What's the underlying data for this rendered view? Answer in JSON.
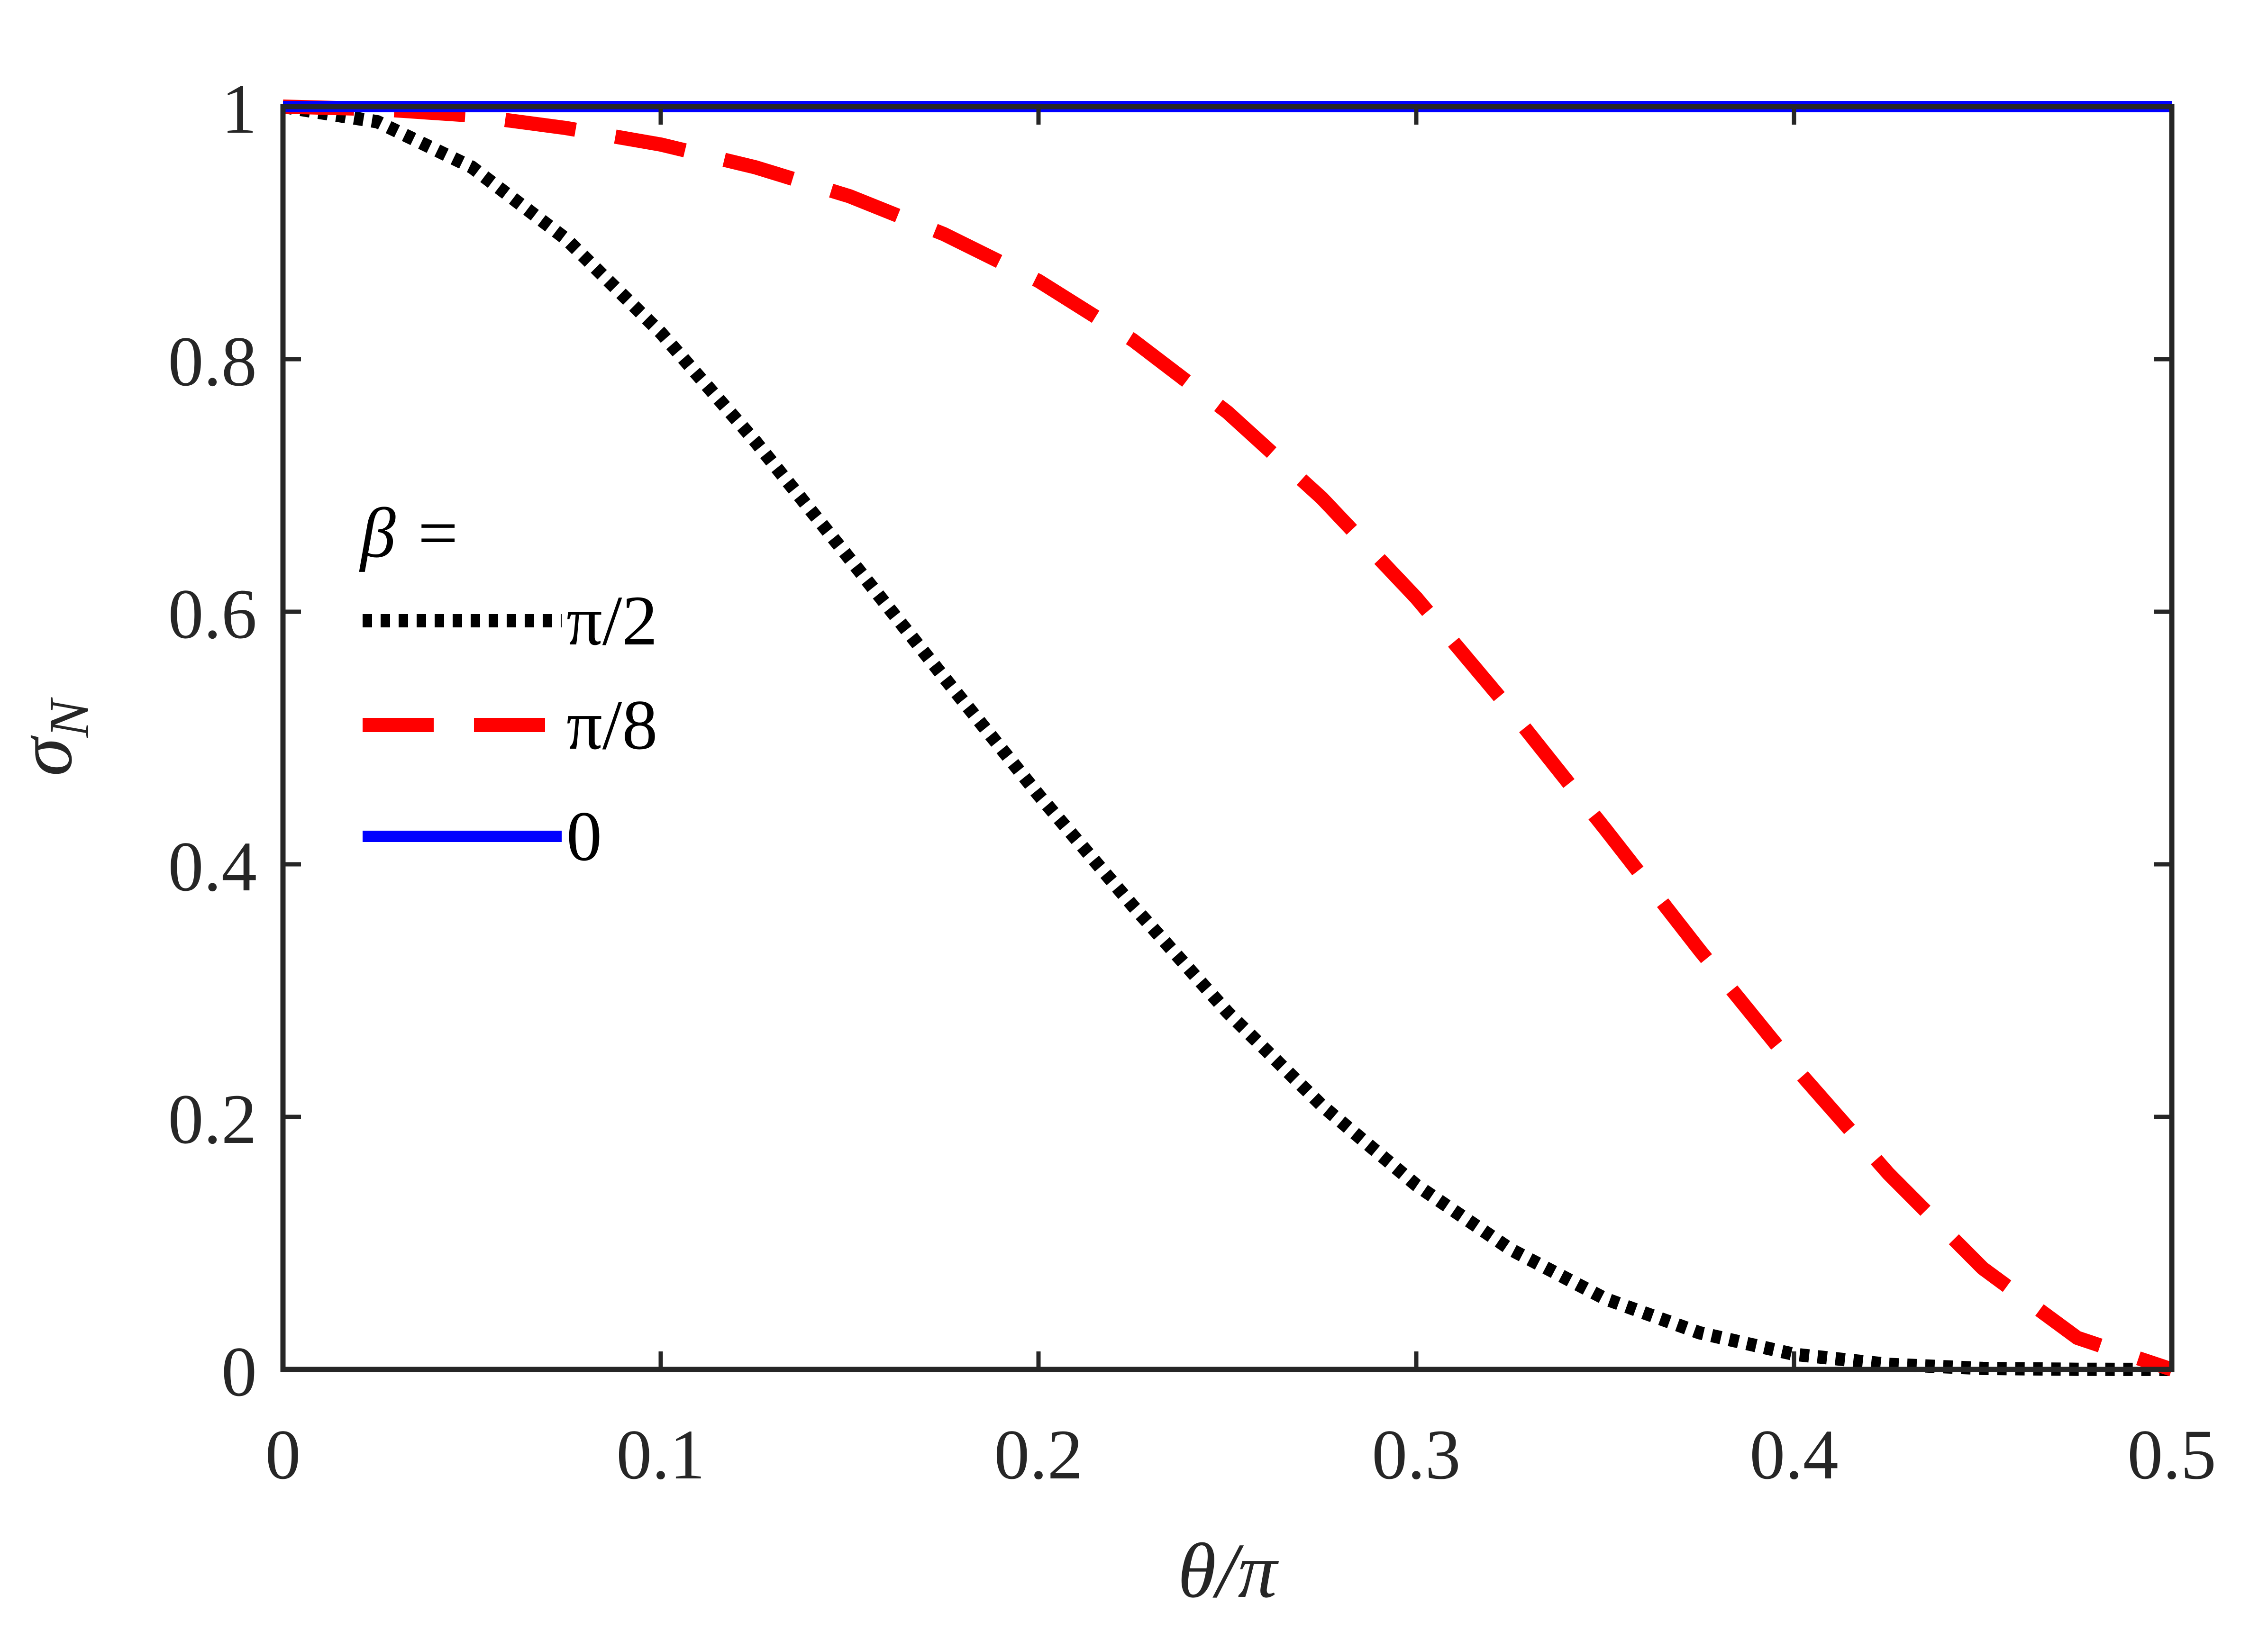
{
  "chart_data": {
    "type": "line",
    "xlabel": "θ/π",
    "ylabel": "σ_N",
    "ylabel_base": "σ",
    "ylabel_sub": "N",
    "xlim": [
      0,
      0.5
    ],
    "ylim": [
      0,
      1
    ],
    "xticks": [
      0,
      0.1,
      0.2,
      0.3,
      0.4,
      0.5
    ],
    "xtick_labels": [
      "0",
      "0.1",
      "0.2",
      "0.3",
      "0.4",
      "0.5"
    ],
    "yticks": [
      0,
      0.2,
      0.4,
      0.6,
      0.8,
      1
    ],
    "ytick_labels": [
      "0",
      "0.2",
      "0.4",
      "0.6",
      "0.8",
      "1"
    ],
    "grid": false,
    "legend_title": "β =",
    "legend_position": "center-left",
    "series": [
      {
        "name": "π/2",
        "color": "#000000",
        "style": "dotted",
        "x": [
          0,
          0.025,
          0.05,
          0.075,
          0.1,
          0.125,
          0.15,
          0.175,
          0.2,
          0.225,
          0.25,
          0.275,
          0.3,
          0.325,
          0.35,
          0.375,
          0.4,
          0.425,
          0.45,
          0.475,
          0.5
        ],
        "y": [
          1.0,
          0.988,
          0.952,
          0.895,
          0.821,
          0.735,
          0.642,
          0.548,
          0.455,
          0.367,
          0.283,
          0.209,
          0.146,
          0.095,
          0.056,
          0.029,
          0.012,
          0.004,
          0.0008,
          0.0001,
          0.0
        ]
      },
      {
        "name": "π/8",
        "color": "#ff0000",
        "style": "dashed",
        "x": [
          0,
          0.025,
          0.05,
          0.075,
          0.1,
          0.125,
          0.15,
          0.175,
          0.2,
          0.225,
          0.25,
          0.275,
          0.3,
          0.325,
          0.35,
          0.375,
          0.4,
          0.425,
          0.45,
          0.475,
          0.5
        ],
        "y": [
          1.0,
          0.998,
          0.993,
          0.983,
          0.97,
          0.952,
          0.929,
          0.899,
          0.862,
          0.815,
          0.758,
          0.69,
          0.611,
          0.522,
          0.428,
          0.332,
          0.24,
          0.155,
          0.08,
          0.025,
          0.0
        ]
      },
      {
        "name": "0",
        "color": "#0000ff",
        "style": "solid",
        "x": [
          0,
          0.5
        ],
        "y": [
          1.0,
          1.0
        ]
      }
    ]
  }
}
